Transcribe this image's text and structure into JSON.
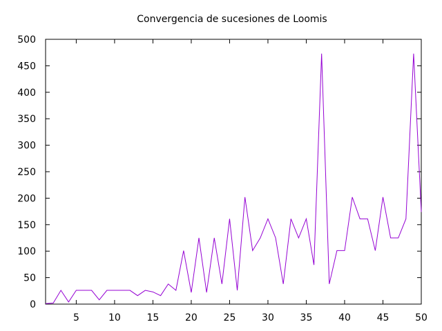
{
  "chart_data": {
    "type": "line",
    "title": "Convergencia de sucesiones de Loomis",
    "xlabel": "",
    "ylabel": "",
    "xlim": [
      1,
      50
    ],
    "ylim": [
      0,
      500
    ],
    "xticks": [
      5,
      10,
      15,
      20,
      25,
      30,
      35,
      40,
      45,
      50
    ],
    "yticks": [
      0,
      50,
      100,
      150,
      200,
      250,
      300,
      350,
      400,
      450,
      500
    ],
    "grid": false,
    "colors": {
      "series": "#9400d3"
    },
    "series": [
      {
        "x": [
          1,
          2,
          3,
          4,
          5,
          6,
          7,
          8,
          9,
          10,
          11,
          12,
          13,
          14,
          15,
          16,
          17,
          18,
          19,
          20,
          21,
          22,
          23,
          24,
          25,
          26,
          27,
          28,
          29,
          30,
          31,
          32,
          33,
          34,
          35,
          36,
          37,
          38,
          39,
          40,
          41,
          42,
          43,
          44,
          45,
          46,
          47,
          48,
          49,
          50
        ],
        "values": [
          1,
          2,
          26,
          4,
          26,
          26,
          26,
          8,
          26,
          26,
          26,
          26,
          16,
          26,
          23,
          16,
          38,
          26,
          101,
          22,
          125,
          22,
          125,
          38,
          161,
          26,
          202,
          101,
          125,
          161,
          125,
          38,
          161,
          125,
          161,
          74,
          473,
          38,
          101,
          101,
          202,
          161,
          161,
          101,
          202,
          125,
          125,
          161,
          473,
          174
        ]
      }
    ]
  }
}
